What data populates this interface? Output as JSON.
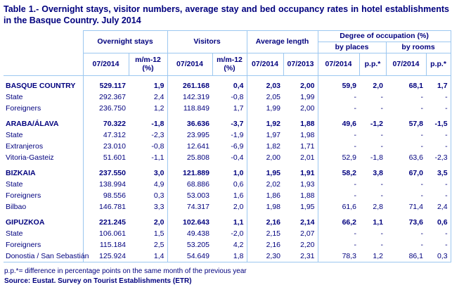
{
  "title": "Table 1.- Overnight stays, visitor numbers, average stay and bed occupancy rates in hotel establishments in the Basque Country. July 2014",
  "colors": {
    "text_navy": "#00007e",
    "border_blue": "#9cc7f0",
    "background": "#ffffff"
  },
  "table": {
    "header": {
      "groups": [
        "Overnight stays",
        "Visitors",
        "Average length",
        "Degree of occupation (%)"
      ],
      "subgroups": [
        "by places",
        "by rooms"
      ],
      "columns": [
        "07/2014",
        "m/m-12\n(%)",
        "07/2014",
        "m/m-12\n(%)",
        "07/2014",
        "07/2013",
        "07/2014",
        "p.p.*",
        "07/2014",
        "p.p.*"
      ]
    },
    "rows": [
      {
        "label": "BASQUE COUNTRY",
        "bold": true,
        "values": [
          "529.117",
          "1,9",
          "261.168",
          "0,4",
          "2,03",
          "2,00",
          "59,9",
          "2,0",
          "68,1",
          "1,7"
        ]
      },
      {
        "label": "State",
        "bold": false,
        "values": [
          "292.367",
          "2,4",
          "142.319",
          "-0,8",
          "2,05",
          "1,99",
          "-",
          "-",
          "-",
          "-"
        ]
      },
      {
        "label": "Foreigners",
        "bold": false,
        "values": [
          "236.750",
          "1,2",
          "118.849",
          "1,7",
          "1,99",
          "2,00",
          "-",
          "-",
          "-",
          "-"
        ]
      },
      {
        "label": "ARABA/ÁLAVA",
        "bold": true,
        "values": [
          "70.322",
          "-1,8",
          "36.636",
          "-3,7",
          "1,92",
          "1,88",
          "49,6",
          "-1,2",
          "57,8",
          "-1,5"
        ]
      },
      {
        "label": "State",
        "bold": false,
        "values": [
          "47.312",
          "-2,3",
          "23.995",
          "-1,9",
          "1,97",
          "1,98",
          "-",
          "-",
          "-",
          "-"
        ]
      },
      {
        "label": "Extranjeros",
        "bold": false,
        "values": [
          "23.010",
          "-0,8",
          "12.641",
          "-6,9",
          "1,82",
          "1,71",
          "-",
          "-",
          "-",
          "-"
        ]
      },
      {
        "label": "Vitoria-Gasteiz",
        "bold": false,
        "values": [
          "51.601",
          "-1,1",
          "25.808",
          "-0,4",
          "2,00",
          "2,01",
          "52,9",
          "-1,8",
          "63,6",
          "-2,3"
        ]
      },
      {
        "label": "BIZKAIA",
        "bold": true,
        "values": [
          "237.550",
          "3,0",
          "121.889",
          "1,0",
          "1,95",
          "1,91",
          "58,2",
          "3,8",
          "67,0",
          "3,5"
        ]
      },
      {
        "label": "State",
        "bold": false,
        "values": [
          "138.994",
          "4,9",
          "68.886",
          "0,6",
          "2,02",
          "1,93",
          "-",
          "-",
          "-",
          "-"
        ]
      },
      {
        "label": "Foreigners",
        "bold": false,
        "values": [
          "98.556",
          "0,3",
          "53.003",
          "1,6",
          "1,86",
          "1,88",
          "-",
          "-",
          "-",
          "-"
        ]
      },
      {
        "label": "Bilbao",
        "bold": false,
        "values": [
          "146.781",
          "3,3",
          "74.317",
          "2,0",
          "1,98",
          "1,95",
          "61,6",
          "2,8",
          "71,4",
          "2,4"
        ]
      },
      {
        "label": "GIPUZKOA",
        "bold": true,
        "values": [
          "221.245",
          "2,0",
          "102.643",
          "1,1",
          "2,16",
          "2,14",
          "66,2",
          "1,1",
          "73,6",
          "0,6"
        ]
      },
      {
        "label": "State",
        "bold": false,
        "values": [
          "106.061",
          "1,5",
          "49.438",
          "-2,0",
          "2,15",
          "2,07",
          "-",
          "-",
          "-",
          "-"
        ]
      },
      {
        "label": "Foreigners",
        "bold": false,
        "values": [
          "115.184",
          "2,5",
          "53.205",
          "4,2",
          "2,16",
          "2,20",
          "-",
          "-",
          "-",
          "-"
        ]
      },
      {
        "label": "Donostia / San Sebastián",
        "bold": false,
        "values": [
          "125.924",
          "1,4",
          "54.649",
          "1,8",
          "2,30",
          "2,31",
          "78,3",
          "1,2",
          "86,1",
          "0,3"
        ]
      }
    ]
  },
  "footnotes": {
    "note": "p.p.*= difference in percentage points on the same month of the previous year",
    "source": "Source: Eustat. Survey on Tourist Establishments (ETR)"
  }
}
